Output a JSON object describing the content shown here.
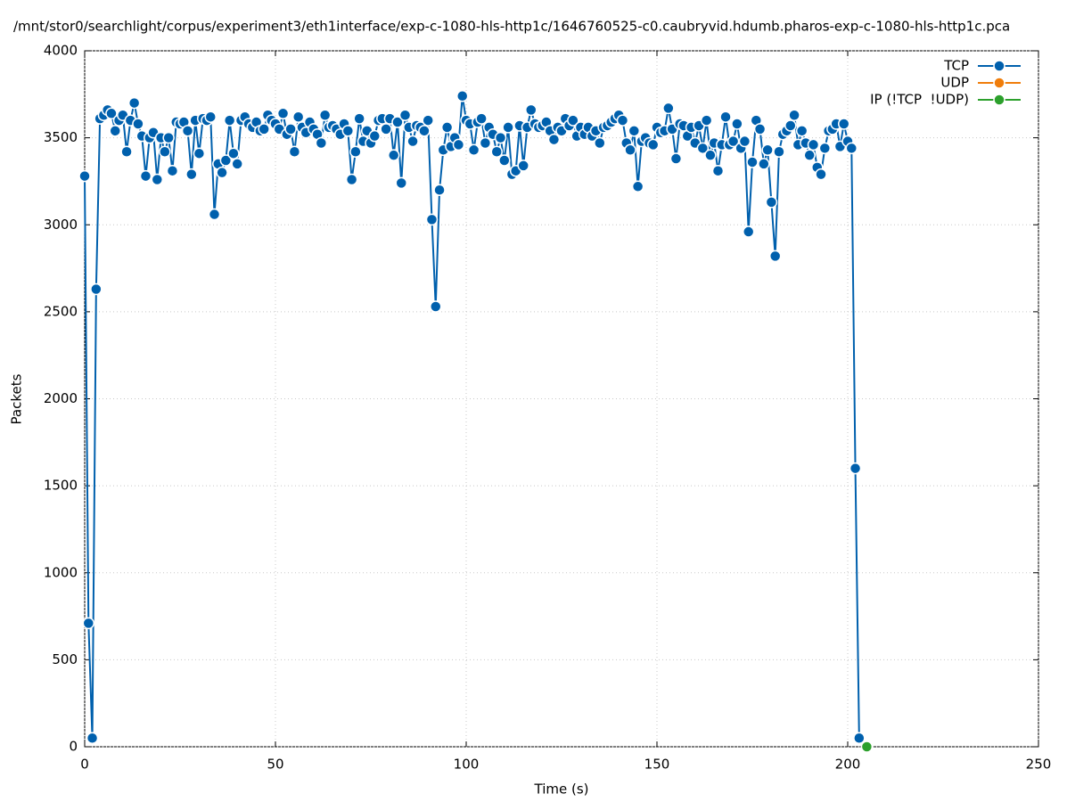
{
  "chart_data": {
    "type": "line",
    "title": "/mnt/stor0/searchlight/corpus/experiment3/eth1interface/exp-c-1080-hls-http1c/1646760525-c0.caubryvid.hdumb.pharos-exp-c-1080-hls-http1c.pca",
    "x_label": "Time (s)",
    "y_label": "Packets",
    "xlim": [
      0,
      250
    ],
    "xticks": [
      0,
      50,
      100,
      150,
      200,
      250
    ],
    "ylim": [
      0,
      4000
    ],
    "yticks": [
      0,
      500,
      1000,
      1500,
      2000,
      2500,
      3000,
      3500,
      4000
    ],
    "grid": true,
    "legend": "top-right",
    "series": [
      {
        "name": "TCP",
        "color": "#0060ad",
        "x": [
          0,
          1,
          2,
          3,
          4,
          5,
          6,
          7,
          8,
          9,
          10,
          11,
          12,
          13,
          14,
          15,
          16,
          17,
          18,
          19,
          20,
          21,
          22,
          23,
          24,
          25,
          26,
          27,
          28,
          29,
          30,
          31,
          32,
          33,
          34,
          35,
          36,
          37,
          38,
          39,
          40,
          41,
          42,
          43,
          44,
          45,
          46,
          47,
          48,
          49,
          50,
          51,
          52,
          53,
          54,
          55,
          56,
          57,
          58,
          59,
          60,
          61,
          62,
          63,
          64,
          65,
          66,
          67,
          68,
          69,
          70,
          71,
          72,
          73,
          74,
          75,
          76,
          77,
          78,
          79,
          80,
          81,
          82,
          83,
          84,
          85,
          86,
          87,
          88,
          89,
          90,
          91,
          92,
          93,
          94,
          95,
          96,
          97,
          98,
          99,
          100,
          101,
          102,
          103,
          104,
          105,
          106,
          107,
          108,
          109,
          110,
          111,
          112,
          113,
          114,
          115,
          116,
          117,
          118,
          119,
          120,
          121,
          122,
          123,
          124,
          125,
          126,
          127,
          128,
          129,
          130,
          131,
          132,
          133,
          134,
          135,
          136,
          137,
          138,
          139,
          140,
          141,
          142,
          143,
          144,
          145,
          146,
          147,
          148,
          149,
          150,
          151,
          152,
          153,
          154,
          155,
          156,
          157,
          158,
          159,
          160,
          161,
          162,
          163,
          164,
          165,
          166,
          167,
          168,
          169,
          170,
          171,
          172,
          173,
          174,
          175,
          176,
          177,
          178,
          179,
          180,
          181,
          182,
          183,
          184,
          185,
          186,
          187,
          188,
          189,
          190,
          191,
          192,
          193,
          194,
          195,
          196,
          197,
          198,
          199,
          200,
          201,
          202,
          203
        ],
        "values": [
          3280,
          710,
          50,
          2630,
          3610,
          3630,
          3660,
          3640,
          3540,
          3600,
          3630,
          3420,
          3600,
          3700,
          3580,
          3510,
          3280,
          3500,
          3530,
          3260,
          3500,
          3420,
          3500,
          3310,
          3590,
          3580,
          3590,
          3540,
          3290,
          3600,
          3410,
          3610,
          3600,
          3620,
          3060,
          3350,
          3300,
          3370,
          3600,
          3410,
          3350,
          3600,
          3620,
          3580,
          3560,
          3590,
          3540,
          3550,
          3630,
          3600,
          3580,
          3550,
          3640,
          3520,
          3550,
          3420,
          3620,
          3560,
          3530,
          3590,
          3550,
          3520,
          3470,
          3630,
          3560,
          3570,
          3550,
          3520,
          3580,
          3540,
          3260,
          3420,
          3610,
          3480,
          3540,
          3470,
          3510,
          3600,
          3610,
          3550,
          3610,
          3400,
          3590,
          3240,
          3630,
          3560,
          3480,
          3570,
          3560,
          3540,
          3600,
          3030,
          2530,
          3200,
          3430,
          3560,
          3450,
          3500,
          3460,
          3740,
          3600,
          3580,
          3430,
          3590,
          3610,
          3470,
          3560,
          3520,
          3420,
          3500,
          3370,
          3560,
          3290,
          3310,
          3570,
          3340,
          3560,
          3660,
          3580,
          3560,
          3570,
          3590,
          3540,
          3490,
          3560,
          3540,
          3610,
          3570,
          3600,
          3510,
          3560,
          3520,
          3560,
          3510,
          3540,
          3470,
          3560,
          3570,
          3590,
          3610,
          3630,
          3600,
          3470,
          3430,
          3540,
          3220,
          3480,
          3500,
          3470,
          3460,
          3560,
          3530,
          3540,
          3670,
          3550,
          3380,
          3580,
          3570,
          3510,
          3560,
          3470,
          3570,
          3440,
          3600,
          3400,
          3470,
          3310,
          3460,
          3620,
          3460,
          3480,
          3580,
          3440,
          3480,
          2960,
          3360,
          3600,
          3550,
          3350,
          3430,
          3130,
          2820,
          3420,
          3520,
          3540,
          3570,
          3630,
          3460,
          3540,
          3470,
          3400,
          3460,
          3330,
          3290,
          3440,
          3540,
          3550,
          3580,
          3450,
          3580,
          3480,
          3440,
          1600,
          50
        ]
      },
      {
        "name": "UDP",
        "color": "#f07d0a",
        "x": [],
        "values": []
      },
      {
        "name": "IP (!TCP  !UDP)",
        "color": "#2ca02c",
        "x": [
          205
        ],
        "values": [
          0
        ]
      }
    ]
  }
}
